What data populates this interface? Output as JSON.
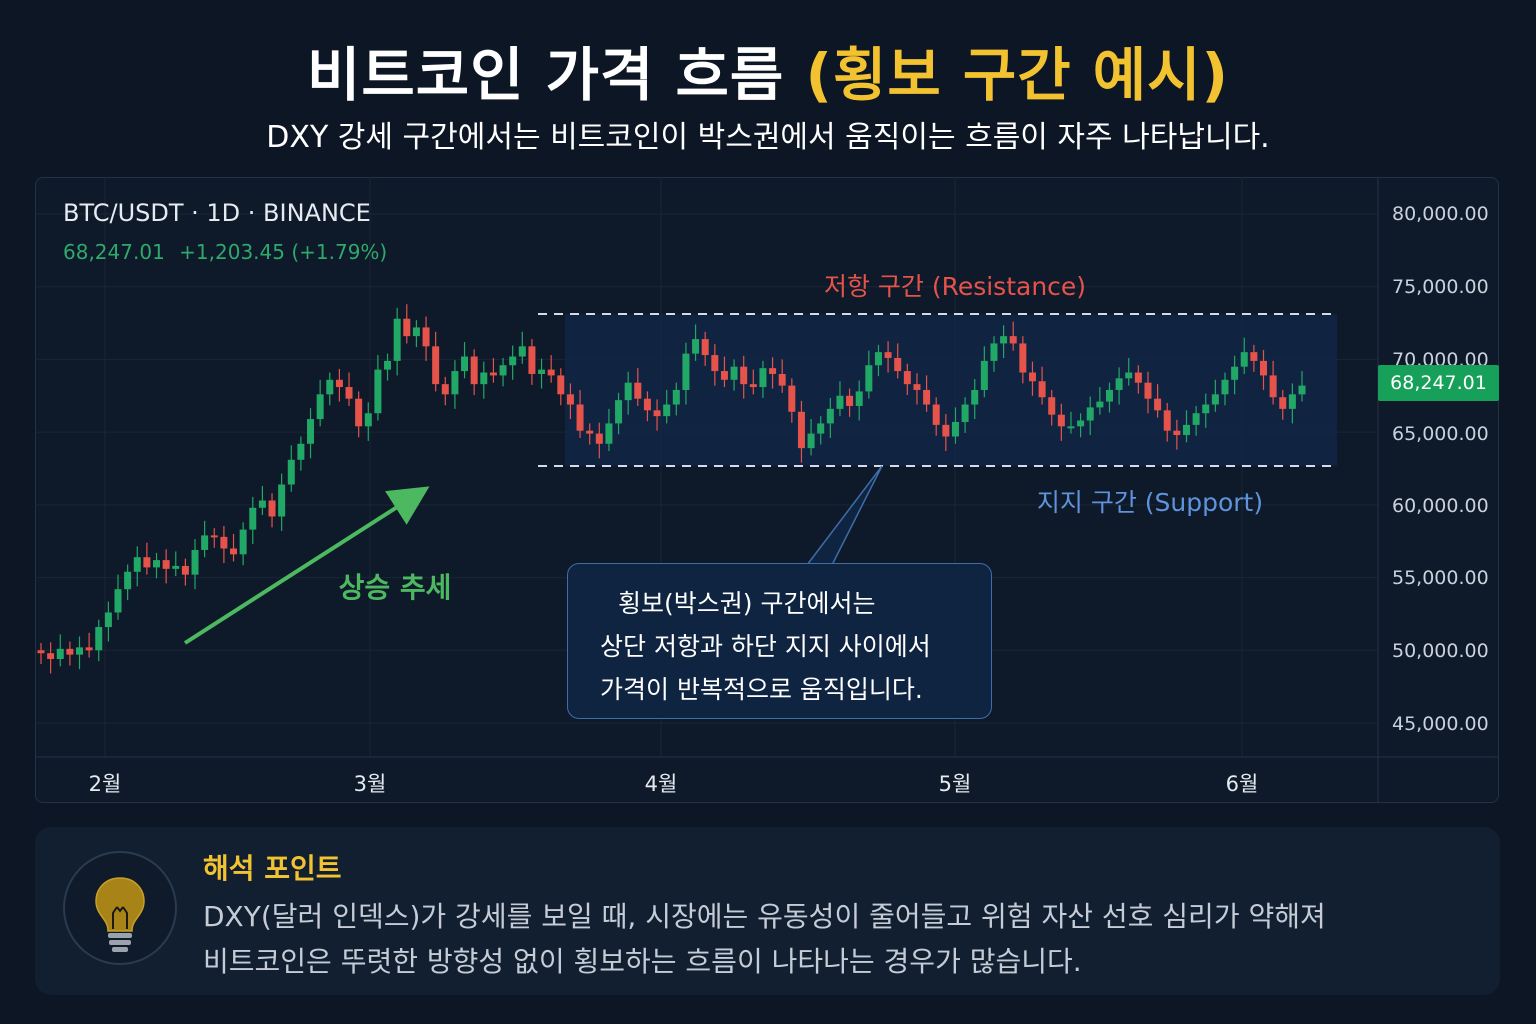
{
  "header": {
    "title_main": "비트코인 가격 흐름 ",
    "title_highlight": "(횡보 구간 예시)",
    "subtitle": "DXY 강세 구간에서는 비트코인이 박스권에서 움직이는 흐름이 자주 나타납니다."
  },
  "chart_header": {
    "symbol": "BTC/USDT · 1D · BINANCE",
    "price": "68,247.01",
    "change": "+1,203.45 (+1.79%)"
  },
  "chart_data": {
    "type": "candlestick",
    "y_ticks": [
      "80,000.00",
      "75,000.00",
      "70,000.00",
      "65,000.00",
      "60,000.00",
      "55,000.00",
      "50,000.00",
      "45,000.00"
    ],
    "x_ticks": [
      "2월",
      "3월",
      "4월",
      "5월",
      "6월"
    ],
    "ylim": [
      45000,
      80000
    ],
    "current_price_label": "68,247.01",
    "resistance": 73000,
    "support": 62800,
    "candles_close": [
      49800,
      49400,
      50100,
      49700,
      50200,
      50000,
      51600,
      52600,
      54200,
      55400,
      56400,
      55700,
      56200,
      55600,
      55800,
      55200,
      56900,
      57900,
      57800,
      57000,
      56600,
      58300,
      59800,
      60300,
      59200,
      61400,
      63100,
      64200,
      65900,
      67600,
      68600,
      68100,
      67300,
      65400,
      66300,
      69300,
      69900,
      72800,
      71600,
      72200,
      70900,
      68300,
      67600,
      69200,
      70200,
      68300,
      69100,
      68900,
      69600,
      70200,
      70900,
      69000,
      69300,
      68900,
      67600,
      66900,
      65100,
      64900,
      64200,
      65600,
      67200,
      68400,
      67300,
      66500,
      66100,
      66900,
      67900,
      70400,
      71400,
      70300,
      69200,
      68600,
      69500,
      68300,
      68100,
      69400,
      69000,
      68200,
      66400,
      63900,
      64900,
      65600,
      66600,
      67500,
      66800,
      67800,
      69600,
      70500,
      70100,
      69200,
      68300,
      67900,
      66900,
      65500,
      64700,
      65700,
      66900,
      67900,
      69900,
      71100,
      71600,
      71100,
      69100,
      68500,
      67400,
      66200,
      65400,
      65400,
      65800,
      66700,
      67100,
      67900,
      68700,
      69100,
      68400,
      67300,
      66500,
      65100,
      64800,
      65500,
      66300,
      66900,
      67600,
      68600,
      69500,
      70500,
      69900,
      68900,
      67400,
      66600,
      67600,
      68200
    ],
    "annotations": {
      "resistance_label": "저항 구간 (Resistance)",
      "support_label": "지지 구간 (Support)",
      "trend_label": "상승 추세"
    }
  },
  "callout": {
    "line1": "횡보(박스권) 구간에서는",
    "line2": "상단 저항과 하단 지지 사이에서",
    "line3": "가격이 반복적으로 움직입니다."
  },
  "note": {
    "icon": "lightbulb-icon",
    "title": "해석 포인트",
    "line1": "DXY(달러 인덱스)가 강세를 보일 때, 시장에는 유동성이 줄어들고 위험 자산 선호 심리가 약해져",
    "line2": "비트코인은 뚜렷한 방향성 없이 횡보하는 흐름이 나타나는 경우가 많습니다."
  },
  "colors": {
    "up": "#22a866",
    "down": "#e5534b",
    "accent": "#f2c230",
    "support": "#5f93dc",
    "trend": "#4cb85f"
  }
}
